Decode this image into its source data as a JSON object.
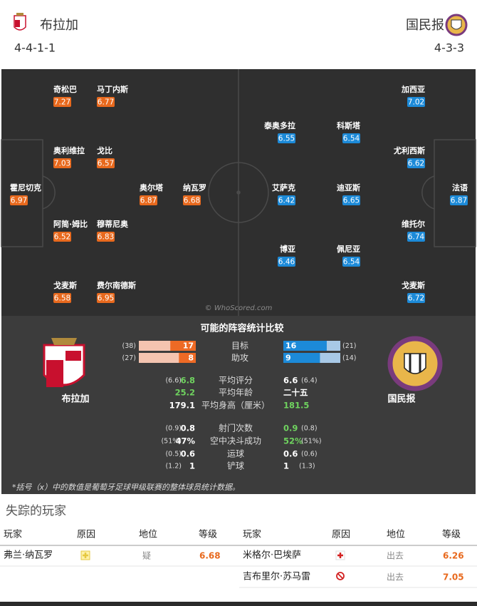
{
  "header": {
    "home_team": "布拉加",
    "home_formation": "4-4-1-1",
    "away_team": "国民报",
    "away_formation": "4-3-3"
  },
  "pitch": {
    "home_players": [
      {
        "name": "奇松巴",
        "rating": 7.27
      },
      {
        "name": "马丁内斯",
        "rating": 6.77
      },
      {
        "name": "奥利维拉",
        "rating": 7.03
      },
      {
        "name": "戈比",
        "rating": 6.57
      },
      {
        "name": "霍尼切克",
        "rating": 6.97
      },
      {
        "name": "奥尔塔",
        "rating": 6.87
      },
      {
        "name": "纳瓦罗",
        "rating": 6.68
      },
      {
        "name": "阿简·姆比",
        "rating": 6.52
      },
      {
        "name": "穆蒂尼奥",
        "rating": 6.83
      },
      {
        "name": "戈麦斯",
        "rating": 6.58
      },
      {
        "name": "费尔南德斯",
        "rating": 6.95
      }
    ],
    "away_players": [
      {
        "name": "加西亚",
        "rating": 7.02
      },
      {
        "name": "泰奥多拉",
        "rating": 6.55
      },
      {
        "name": "科斯塔",
        "rating": 6.54
      },
      {
        "name": "尤利西斯",
        "rating": 6.62
      },
      {
        "name": "艾萨克",
        "rating": 6.42
      },
      {
        "name": "迪亚斯",
        "rating": 6.65
      },
      {
        "name": "法语",
        "rating": 6.87
      },
      {
        "name": "维托尔",
        "rating": 6.74
      },
      {
        "name": "博亚",
        "rating": 6.46
      },
      {
        "name": "佩尼亚",
        "rating": 6.54
      },
      {
        "name": "戈麦斯",
        "rating": 6.72
      }
    ],
    "watermark": "© WhoScored.com"
  },
  "comparison": {
    "title": "可能的阵容统计比较",
    "home_team": "布拉加",
    "away_team": "国民报",
    "bar_rows": [
      {
        "label": "目标",
        "home": 17,
        "home_league": {
          "value": 38,
          "label": "(38)"
        },
        "away": 16,
        "away_league": {
          "value": 21,
          "label": "(21)"
        }
      },
      {
        "label": "助攻",
        "home": 8,
        "home_league": {
          "value": 27,
          "label": "(27)"
        },
        "away": 9,
        "away_league": {
          "value": 14,
          "label": "(14)"
        }
      }
    ],
    "rows": [
      {
        "label": "平均评分",
        "home": 6.8,
        "home_league": "(6.6)",
        "away": 6.6,
        "away_league": "(6.4)"
      },
      {
        "label": "平均年龄",
        "home": 25.2,
        "away": "二十五"
      },
      {
        "label": "平均身高（厘米）",
        "home": 179.1,
        "away": 181.5
      },
      {
        "label": "射门次数",
        "home": 0.8,
        "home_league": "(0.9)",
        "away": 0.9,
        "away_league": "(0.8)"
      },
      {
        "label": "空中决斗成功",
        "home": "47%",
        "home_league": "(51%)",
        "away": "52%",
        "away_league": "(51%)"
      },
      {
        "label": "运球",
        "home": 0.6,
        "home_league": "(0.5)",
        "away": 0.6,
        "away_league": "(0.6)"
      },
      {
        "label": "铲球",
        "home": 1,
        "home_league": "(1.2)",
        "away": 1,
        "away_league": "(1.3)"
      }
    ],
    "footnote": "*括号（x）中的数值是葡萄牙足球甲级联赛的整体球员统计数据。"
  },
  "missing": {
    "title": "失踪的玩家",
    "headers": [
      "玩家",
      "原因",
      "地位",
      "等级",
      "玩家",
      "原因",
      "地位",
      "等级"
    ],
    "home": [
      {
        "player": "弗兰·纳瓦罗",
        "status": "疑",
        "rating": 6.68
      }
    ],
    "away": [
      {
        "player": "米格尔·巴埃萨",
        "status": "出去",
        "rating": 6.26
      },
      {
        "player": "吉布里尔·苏马雷",
        "status": "出去",
        "rating": 7.05
      }
    ]
  }
}
